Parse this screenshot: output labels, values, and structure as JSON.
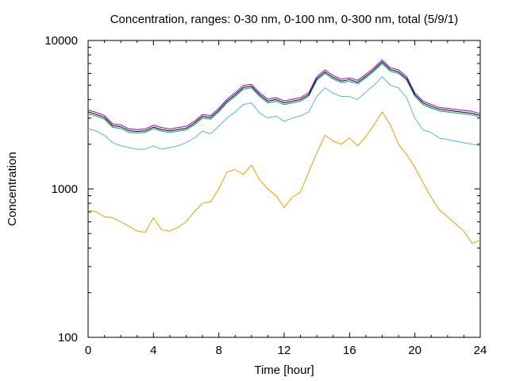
{
  "chart_data": {
    "type": "line",
    "title": "Concentration, ranges: 0-30 nm, 0-100 nm, 0-300 nm, total (5/9/1)",
    "xlabel": "Time [hour]",
    "ylabel": "Concentration",
    "xlim": [
      0,
      24
    ],
    "ylim": [
      100,
      10000
    ],
    "yscale": "log",
    "grid": false,
    "legend": "none",
    "x_ticks": [
      "0",
      "4",
      "8",
      "12",
      "16",
      "20",
      "24"
    ],
    "y_ticks": [
      "100",
      "1000",
      "10000"
    ],
    "x": [
      0,
      0.5,
      1,
      1.5,
      2,
      2.5,
      3,
      3.5,
      4,
      4.5,
      5,
      5.5,
      6,
      6.5,
      7,
      7.5,
      8,
      8.5,
      9,
      9.5,
      10,
      10.5,
      11,
      11.5,
      12,
      12.5,
      13,
      13.5,
      14,
      14.5,
      15,
      15.5,
      16,
      16.5,
      17,
      17.5,
      18,
      18.5,
      19,
      19.5,
      20,
      20.5,
      21,
      21.5,
      22,
      22.5,
      23,
      23.5,
      24
    ],
    "series": [
      {
        "color": "#e69f00",
        "values": [
          720,
          700,
          650,
          640,
          600,
          560,
          520,
          510,
          640,
          530,
          520,
          550,
          600,
          700,
          800,
          820,
          1000,
          1300,
          1350,
          1250,
          1450,
          1150,
          1000,
          900,
          750,
          880,
          950,
          1300,
          1750,
          2300,
          2100,
          2000,
          2200,
          1950,
          2250,
          2700,
          3300,
          2700,
          2000,
          1700,
          1400,
          1100,
          880,
          720,
          650,
          580,
          520,
          430,
          450
        ]
      },
      {
        "color": "#56b4e9",
        "values": [
          2550,
          2450,
          2300,
          2050,
          1950,
          1900,
          1850,
          1850,
          1950,
          1850,
          1900,
          1950,
          2050,
          2200,
          2450,
          2350,
          2650,
          3000,
          3300,
          3700,
          3800,
          3250,
          3000,
          3100,
          2850,
          3000,
          3100,
          3300,
          4200,
          4800,
          4400,
          4200,
          4200,
          4000,
          4500,
          5000,
          5700,
          5000,
          4800,
          4100,
          3000,
          2500,
          2400,
          2200,
          2150,
          2100,
          2050,
          2000,
          1950
        ]
      },
      {
        "color": "#009e73",
        "values": [
          3200,
          3100,
          2950,
          2600,
          2550,
          2400,
          2380,
          2400,
          2550,
          2450,
          2400,
          2450,
          2500,
          2700,
          3000,
          2950,
          3300,
          3800,
          4200,
          4700,
          4800,
          4200,
          3800,
          3900,
          3700,
          3800,
          3900,
          4200,
          5400,
          6000,
          5500,
          5200,
          5300,
          5100,
          5600,
          6200,
          7000,
          6200,
          6000,
          5400,
          4200,
          3700,
          3500,
          3350,
          3300,
          3250,
          3200,
          3150,
          3050
        ]
      },
      {
        "color": "#000000",
        "values": [
          3300,
          3180,
          3030,
          2670,
          2620,
          2470,
          2440,
          2460,
          2610,
          2510,
          2460,
          2510,
          2560,
          2770,
          3080,
          3030,
          3390,
          3900,
          4310,
          4820,
          4920,
          4310,
          3900,
          4000,
          3800,
          3900,
          4000,
          4310,
          5540,
          6150,
          5640,
          5330,
          5440,
          5230,
          5740,
          6360,
          7180,
          6360,
          6150,
          5540,
          4310,
          3800,
          3590,
          3440,
          3390,
          3330,
          3280,
          3230,
          3130
        ]
      },
      {
        "color": "#9400d3",
        "values": [
          3400,
          3280,
          3120,
          2750,
          2700,
          2540,
          2510,
          2530,
          2690,
          2590,
          2530,
          2590,
          2640,
          2850,
          3170,
          3120,
          3490,
          4020,
          4440,
          4970,
          5070,
          4440,
          4020,
          4120,
          3910,
          4020,
          4120,
          4440,
          5710,
          6340,
          5810,
          5490,
          5600,
          5390,
          5920,
          6550,
          7400,
          6550,
          6340,
          5710,
          4440,
          3910,
          3700,
          3540,
          3490,
          3430,
          3380,
          3330,
          3220
        ]
      }
    ]
  }
}
